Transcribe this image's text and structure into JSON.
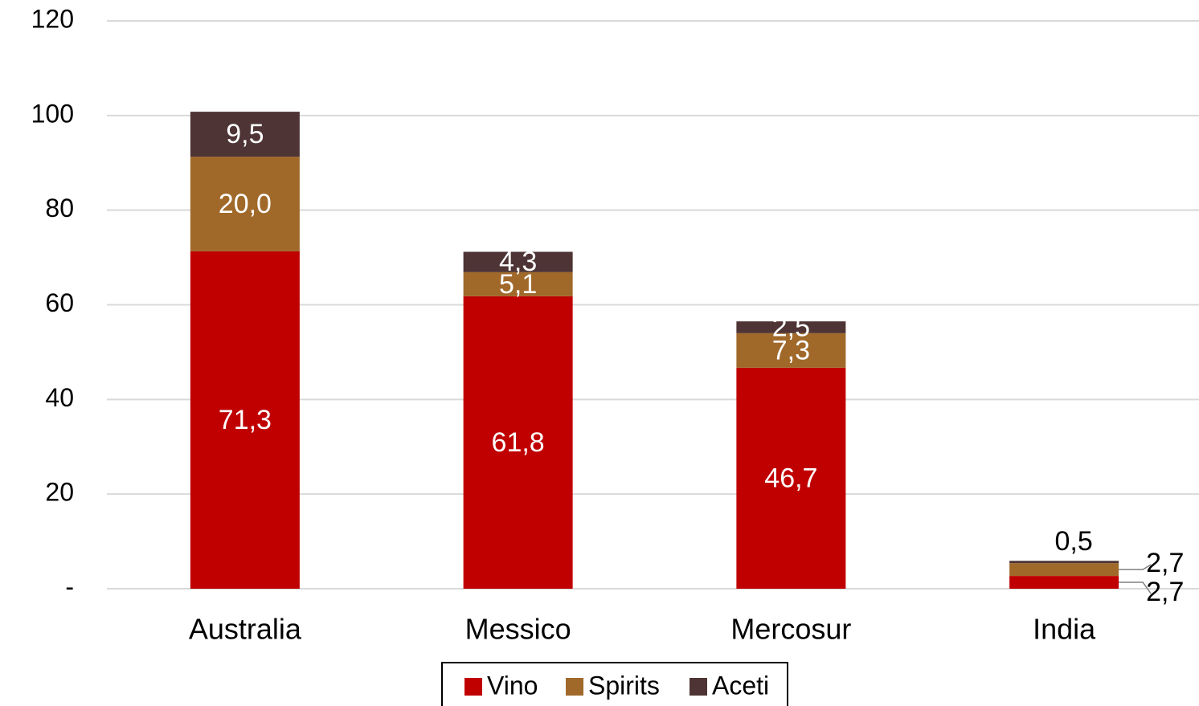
{
  "chart_data": {
    "type": "stacked_bar",
    "categories": [
      "Australia",
      "Messico",
      "Mercosur",
      "India"
    ],
    "series": [
      {
        "name": "Vino",
        "color": "#c00000",
        "values": [
          71.3,
          61.8,
          46.7,
          2.7
        ],
        "value_labels": [
          "71,3",
          "61,8",
          "46,7",
          "2,7"
        ]
      },
      {
        "name": "Spirits",
        "color": "#a0692a",
        "values": [
          20.0,
          5.1,
          7.3,
          2.7
        ],
        "value_labels": [
          "20,0",
          "5,1",
          "7,3",
          "2,7"
        ]
      },
      {
        "name": "Aceti",
        "color": "#4e3434",
        "values": [
          9.5,
          4.3,
          2.5,
          0.5
        ],
        "value_labels": [
          "9,5",
          "4,3",
          "2,5",
          "0,5"
        ]
      }
    ],
    "ylim": [
      0,
      120
    ],
    "yticks": [
      {
        "value": 0,
        "label": "-"
      },
      20,
      40,
      60,
      80,
      100,
      120
    ],
    "grid": true,
    "legend": "bottom"
  }
}
